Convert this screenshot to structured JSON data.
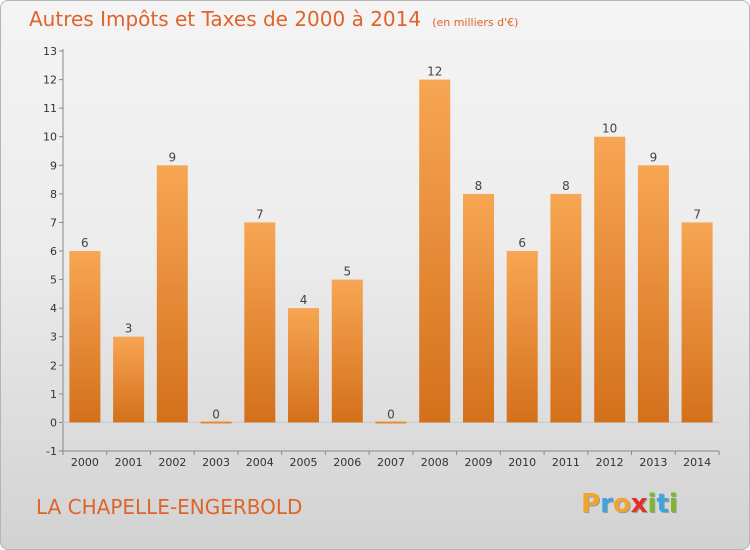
{
  "chart_data": {
    "type": "bar",
    "title": "Autres Impôts et Taxes de 2000 à 2014",
    "unit_note": "(en milliers d'€)",
    "categories": [
      "2000",
      "2001",
      "2002",
      "2003",
      "2004",
      "2005",
      "2006",
      "2007",
      "2008",
      "2009",
      "2010",
      "2011",
      "2012",
      "2013",
      "2014"
    ],
    "values": [
      6,
      3,
      9,
      0,
      7,
      4,
      5,
      0,
      12,
      8,
      6,
      8,
      10,
      9,
      7
    ],
    "ylim": [
      -1,
      13
    ],
    "yticks": [
      -1,
      0,
      1,
      2,
      3,
      4,
      5,
      6,
      7,
      8,
      9,
      10,
      11,
      12,
      13
    ],
    "xlabel": "",
    "ylabel": "",
    "grid": false,
    "bar_color": "#f0923f",
    "bar_color_dark": "#d76f1a"
  },
  "footer": {
    "city": "LA CHAPELLE-ENGERBOLD",
    "logo_letters": [
      "P",
      "r",
      "o",
      "x",
      "i",
      "t",
      "i"
    ],
    "logo_colors": [
      "#f0a531",
      "#3fa3dc",
      "#f0a531",
      "#e0322a",
      "#7cb82f",
      "#3fa3dc",
      "#7cb82f"
    ]
  },
  "colors": {
    "accent": "#e0632a"
  }
}
